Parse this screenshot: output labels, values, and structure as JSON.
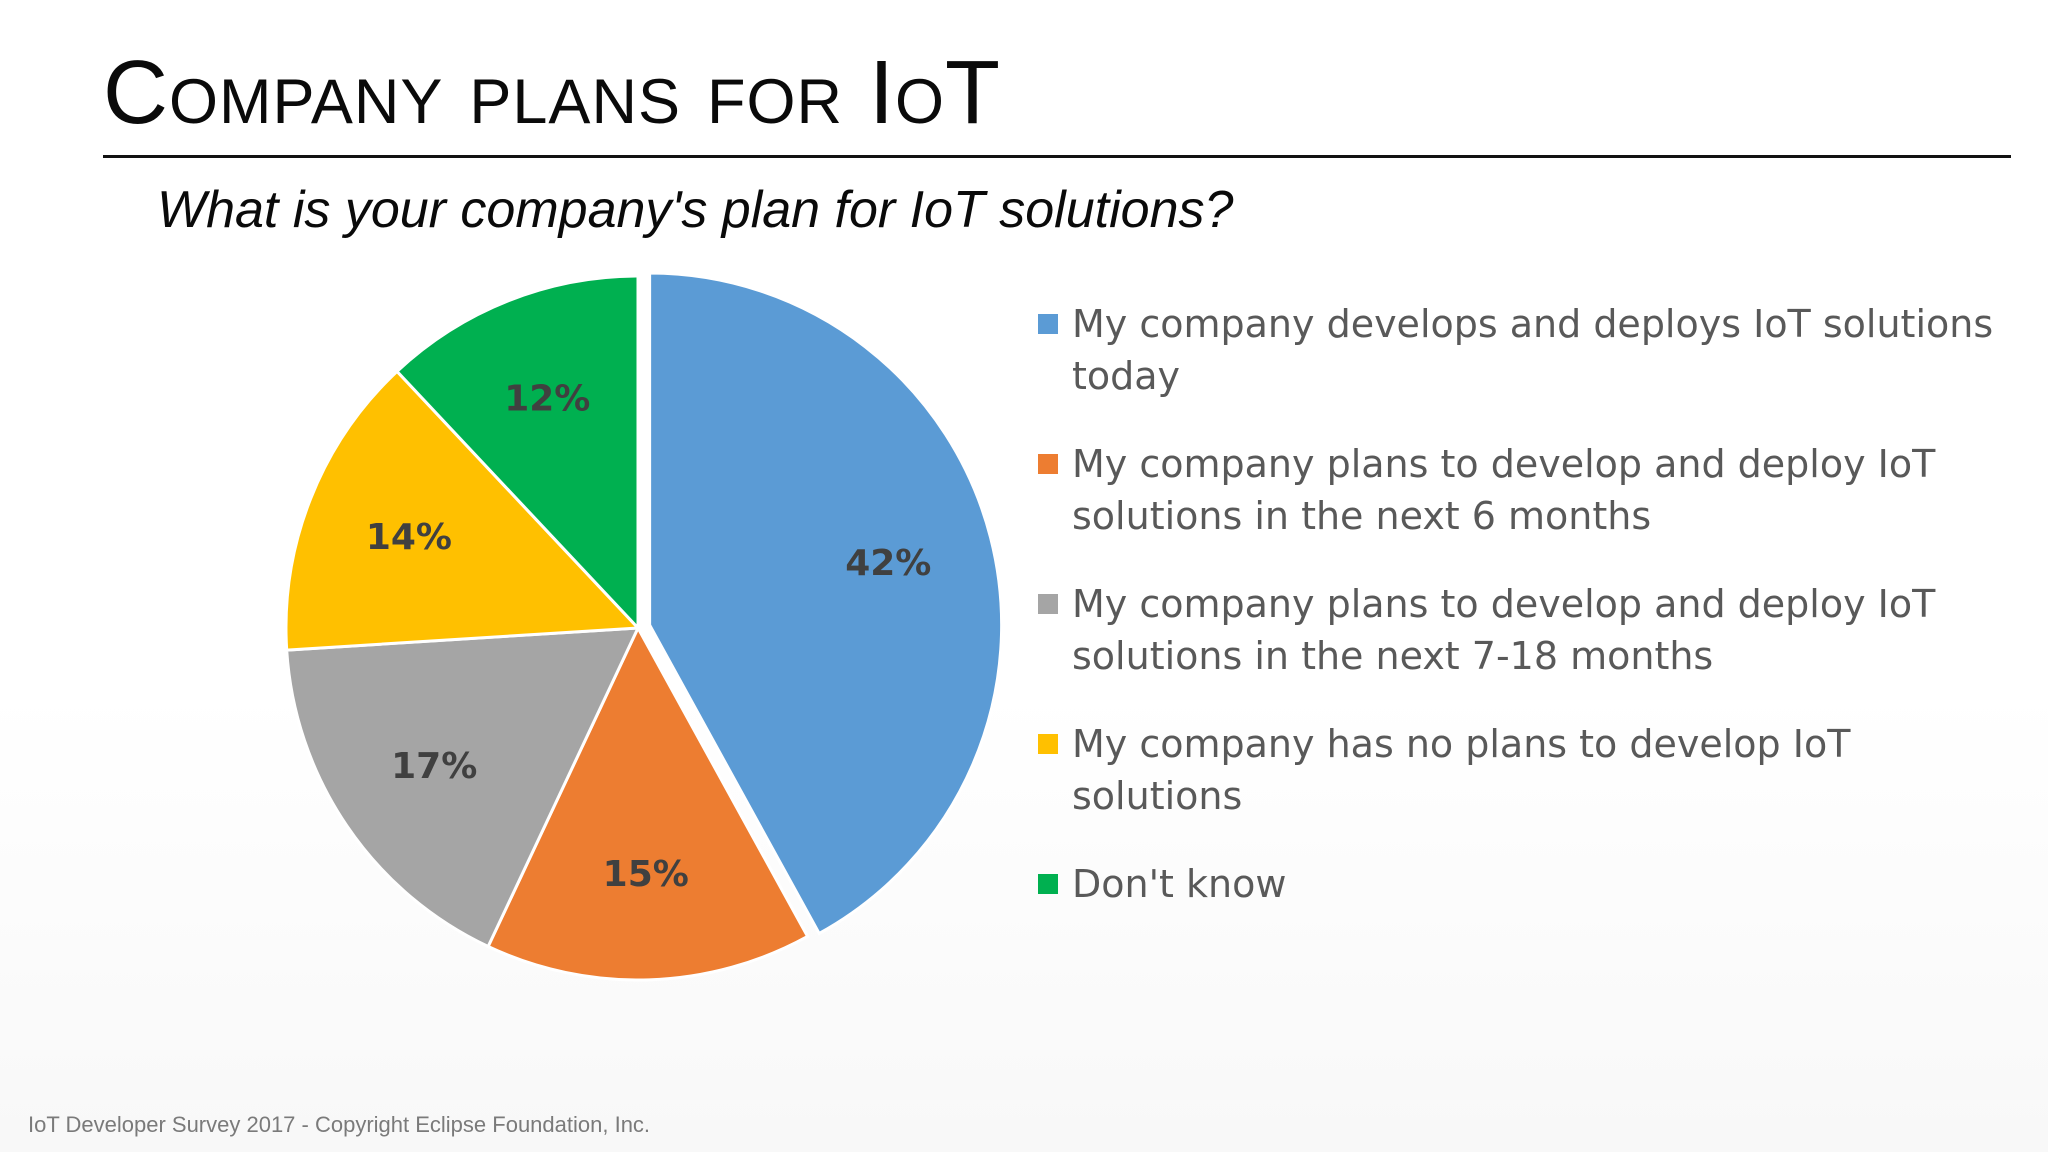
{
  "slide": {
    "title": "Company plans for IoT",
    "footer": "IoT Developer Survey 2017 - Copyright Eclipse Foundation, Inc."
  },
  "chart_data": {
    "type": "pie",
    "title": "What is your company's plan for IoT solutions?",
    "legend_position": "right",
    "slices": [
      {
        "label": "My company develops and deploys IoT solutions today",
        "value": 42,
        "display": "42%",
        "color": "#5b9bd5",
        "exploded": true
      },
      {
        "label": "My company plans to develop and deploy IoT solutions in the next 6 months",
        "value": 15,
        "display": "15%",
        "color": "#ed7d31"
      },
      {
        "label": "My company plans to develop and deploy IoT solutions in the next 7-18 months",
        "value": 17,
        "display": "17%",
        "color": "#a5a5a5"
      },
      {
        "label": "My company has no plans to develop IoT solutions",
        "value": 14,
        "display": "14%",
        "color": "#ffc000"
      },
      {
        "label": "Don't know",
        "value": 12,
        "display": "12%",
        "color": "#00b050"
      }
    ]
  }
}
